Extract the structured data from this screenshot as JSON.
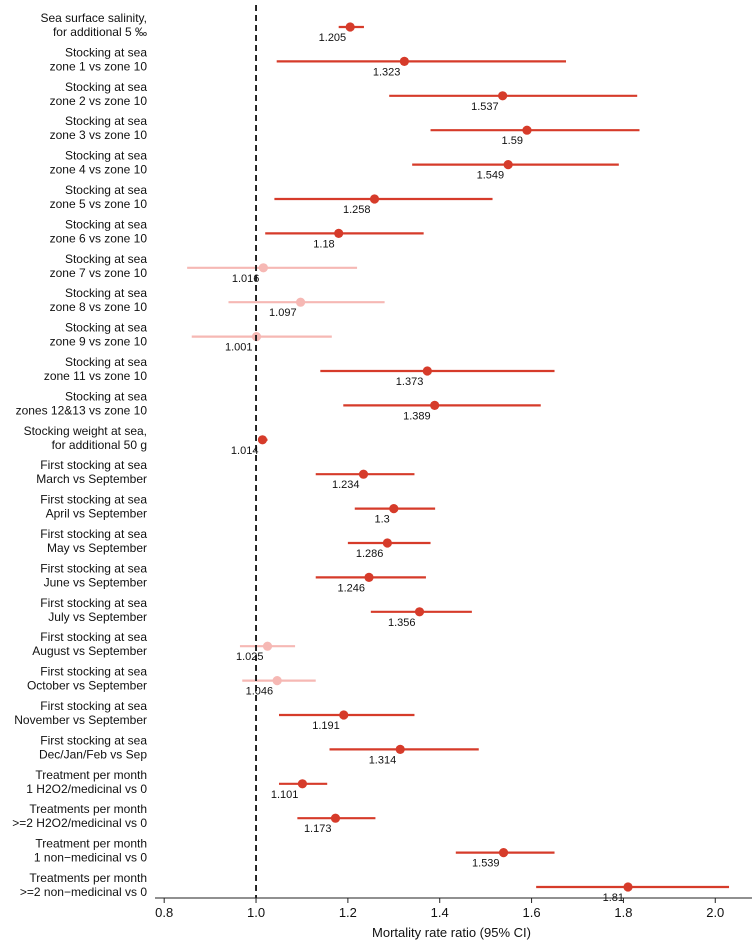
{
  "chart_data": {
    "type": "forest",
    "xlabel": "Mortality rate ratio (95% CI)",
    "xlim": [
      0.78,
      2.08
    ],
    "xticks": [
      "0.8",
      "1.0",
      "1.2",
      "1.4",
      "1.6",
      "1.8",
      "2.0"
    ],
    "reference_line": 1.0,
    "grid": false,
    "colors": {
      "significant": "#d63b2a",
      "nonsignificant": "#f6b8b4",
      "axis": "#222222"
    },
    "rows": [
      {
        "label_line1": "Sea surface salinity,",
        "label_line2": "for additional 5 ‰",
        "estimate": 1.205,
        "estimate_label": "1.205",
        "lower": 1.18,
        "upper": 1.235,
        "significant": true
      },
      {
        "label_line1": "Stocking at sea",
        "label_line2": "zone 1 vs zone 10",
        "estimate": 1.323,
        "estimate_label": "1.323",
        "lower": 1.045,
        "upper": 1.675,
        "significant": true
      },
      {
        "label_line1": "Stocking at sea",
        "label_line2": "zone 2 vs zone 10",
        "estimate": 1.537,
        "estimate_label": "1.537",
        "lower": 1.29,
        "upper": 1.83,
        "significant": true
      },
      {
        "label_line1": "Stocking at sea",
        "label_line2": "zone 3 vs zone 10",
        "estimate": 1.59,
        "estimate_label": "1.59",
        "lower": 1.38,
        "upper": 1.835,
        "significant": true
      },
      {
        "label_line1": "Stocking at sea",
        "label_line2": "zone 4 vs zone 10",
        "estimate": 1.549,
        "estimate_label": "1.549",
        "lower": 1.34,
        "upper": 1.79,
        "significant": true
      },
      {
        "label_line1": "Stocking at sea",
        "label_line2": "zone 5 vs zone 10",
        "estimate": 1.258,
        "estimate_label": "1.258",
        "lower": 1.04,
        "upper": 1.515,
        "significant": true
      },
      {
        "label_line1": "Stocking at sea",
        "label_line2": "zone 6 vs zone 10",
        "estimate": 1.18,
        "estimate_label": "1.18",
        "lower": 1.02,
        "upper": 1.365,
        "significant": true
      },
      {
        "label_line1": "Stocking at sea",
        "label_line2": "zone 7 vs zone 10",
        "estimate": 1.016,
        "estimate_label": "1.016",
        "lower": 0.85,
        "upper": 1.22,
        "significant": false
      },
      {
        "label_line1": "Stocking at sea",
        "label_line2": "zone 8 vs zone 10",
        "estimate": 1.097,
        "estimate_label": "1.097",
        "lower": 0.94,
        "upper": 1.28,
        "significant": false
      },
      {
        "label_line1": "Stocking at sea",
        "label_line2": "zone 9 vs zone 10",
        "estimate": 1.001,
        "estimate_label": "1.001",
        "lower": 0.86,
        "upper": 1.165,
        "significant": false
      },
      {
        "label_line1": "Stocking at sea",
        "label_line2": "zone 11 vs zone 10",
        "estimate": 1.373,
        "estimate_label": "1.373",
        "lower": 1.14,
        "upper": 1.65,
        "significant": true
      },
      {
        "label_line1": "Stocking at sea",
        "label_line2": "zones 12&13 vs zone 10",
        "estimate": 1.389,
        "estimate_label": "1.389",
        "lower": 1.19,
        "upper": 1.62,
        "significant": true
      },
      {
        "label_line1": "Stocking weight at sea,",
        "label_line2": "for additional 50 g",
        "estimate": 1.014,
        "estimate_label": "1.014",
        "lower": 1.005,
        "upper": 1.025,
        "significant": true
      },
      {
        "label_line1": "First stocking at sea",
        "label_line2": "March vs September",
        "estimate": 1.234,
        "estimate_label": "1.234",
        "lower": 1.13,
        "upper": 1.345,
        "significant": true
      },
      {
        "label_line1": "First stocking at sea",
        "label_line2": "April vs September",
        "estimate": 1.3,
        "estimate_label": "1.3",
        "lower": 1.215,
        "upper": 1.39,
        "significant": true
      },
      {
        "label_line1": "First stocking at sea",
        "label_line2": "May vs September",
        "estimate": 1.286,
        "estimate_label": "1.286",
        "lower": 1.2,
        "upper": 1.38,
        "significant": true
      },
      {
        "label_line1": "First stocking at sea",
        "label_line2": "June vs September",
        "estimate": 1.246,
        "estimate_label": "1.246",
        "lower": 1.13,
        "upper": 1.37,
        "significant": true
      },
      {
        "label_line1": "First stocking at sea",
        "label_line2": "July vs September",
        "estimate": 1.356,
        "estimate_label": "1.356",
        "lower": 1.25,
        "upper": 1.47,
        "significant": true
      },
      {
        "label_line1": "First stocking at sea",
        "label_line2": "August vs September",
        "estimate": 1.025,
        "estimate_label": "1.025",
        "lower": 0.965,
        "upper": 1.085,
        "significant": false
      },
      {
        "label_line1": "First stocking at sea",
        "label_line2": "October vs September",
        "estimate": 1.046,
        "estimate_label": "1.046",
        "lower": 0.97,
        "upper": 1.13,
        "significant": false
      },
      {
        "label_line1": "First stocking at sea",
        "label_line2": "November vs September",
        "estimate": 1.191,
        "estimate_label": "1.191",
        "lower": 1.05,
        "upper": 1.345,
        "significant": true
      },
      {
        "label_line1": "First stocking at sea",
        "label_line2": "Dec/Jan/Feb vs Sep",
        "estimate": 1.314,
        "estimate_label": "1.314",
        "lower": 1.16,
        "upper": 1.485,
        "significant": true
      },
      {
        "label_line1": "Treatment per month",
        "label_line2": "1 H2O2/medicinal vs 0",
        "estimate": 1.101,
        "estimate_label": "1.101",
        "lower": 1.05,
        "upper": 1.155,
        "significant": true
      },
      {
        "label_line1": "Treatments per month",
        "label_line2": ">=2 H2O2/medicinal vs 0",
        "estimate": 1.173,
        "estimate_label": "1.173",
        "lower": 1.09,
        "upper": 1.26,
        "significant": true
      },
      {
        "label_line1": "Treatment per month",
        "label_line2": "1 non−medicinal vs 0",
        "estimate": 1.539,
        "estimate_label": "1.539",
        "lower": 1.435,
        "upper": 1.65,
        "significant": true
      },
      {
        "label_line1": "Treatments per month",
        "label_line2": ">=2 non−medicinal vs 0",
        "estimate": 1.81,
        "estimate_label": "1.81",
        "lower": 1.61,
        "upper": 2.03,
        "significant": true
      }
    ]
  }
}
